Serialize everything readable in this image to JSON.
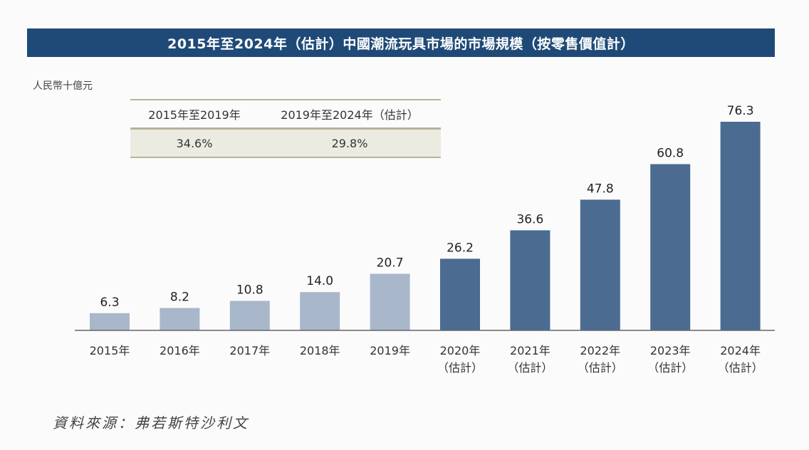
{
  "chart_data": {
    "type": "bar",
    "title": "2015年至2024年（估計）中國潮流玩具市場的市場規模（按零售價值計）",
    "ylabel": "人民幣十億元",
    "categories": [
      [
        "2015年"
      ],
      [
        "2016年"
      ],
      [
        "2017年"
      ],
      [
        "2018年"
      ],
      [
        "2019年"
      ],
      [
        "2020年",
        "（估計）"
      ],
      [
        "2021年",
        "（估計）"
      ],
      [
        "2022年",
        "（估計）"
      ],
      [
        "2023年",
        "（估計）"
      ],
      [
        "2024年",
        "（估計）"
      ]
    ],
    "values": [
      6.3,
      8.2,
      10.8,
      14.0,
      20.7,
      26.2,
      36.6,
      47.8,
      60.8,
      76.3
    ],
    "value_labels": [
      "6.3",
      "8.2",
      "10.8",
      "14.0",
      "20.7",
      "26.2",
      "36.6",
      "47.8",
      "60.8",
      "76.3"
    ],
    "ylim": [
      0,
      80
    ],
    "grid": false,
    "colors": {
      "actual": "#a9b7cb",
      "estimated": "#4b6b91",
      "title_bar": "#1f4a78"
    },
    "cagr_table": {
      "headers": [
        "2015年至2019年",
        "2019年至2024年（估計）"
      ],
      "values": [
        "34.6%",
        "29.8%"
      ]
    },
    "source": "資料來源：弗若斯特沙利文"
  }
}
